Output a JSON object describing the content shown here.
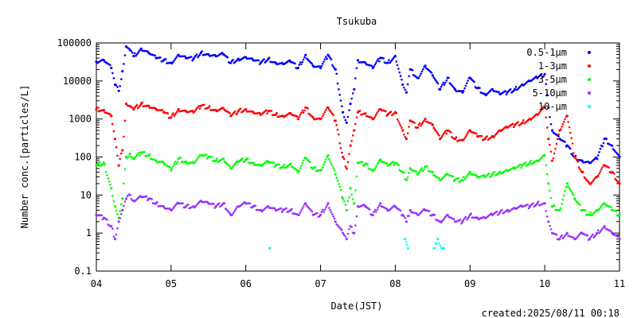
{
  "chart_data": {
    "type": "scatter",
    "title": "Tsukuba",
    "xlabel": "Date(JST)",
    "ylabel": "Number conc.[particles/L]",
    "y_scale": "log",
    "ylim": [
      0.1,
      100000
    ],
    "xlim": [
      4,
      11
    ],
    "x_ticks": [
      {
        "value": 4,
        "label": "04"
      },
      {
        "value": 5,
        "label": "05"
      },
      {
        "value": 6,
        "label": "06"
      },
      {
        "value": 7,
        "label": "07"
      },
      {
        "value": 8,
        "label": "08"
      },
      {
        "value": 9,
        "label": "09"
      },
      {
        "value": 10,
        "label": "10"
      },
      {
        "value": 11,
        "label": "11"
      }
    ],
    "y_ticks": [
      {
        "value": 0.1,
        "label": "0.1"
      },
      {
        "value": 1,
        "label": "1"
      },
      {
        "value": 10,
        "label": "10"
      },
      {
        "value": 100,
        "label": "100"
      },
      {
        "value": 1000,
        "label": "1000"
      },
      {
        "value": 10000,
        "label": "10000"
      },
      {
        "value": 100000,
        "label": "100000"
      }
    ],
    "grid": false,
    "legend_position": "top-right",
    "annotation": "created:2025/08/11 00:18",
    "series": [
      {
        "name": "0.5-1μm",
        "color": "#0000ff",
        "x": [
          4.0,
          4.1,
          4.2,
          4.25,
          4.3,
          4.35,
          4.4,
          4.45,
          4.5,
          4.6,
          4.7,
          4.8,
          4.9,
          5.0,
          5.1,
          5.2,
          5.3,
          5.4,
          5.5,
          5.6,
          5.7,
          5.8,
          5.9,
          6.0,
          6.1,
          6.2,
          6.3,
          6.4,
          6.5,
          6.6,
          6.7,
          6.8,
          6.9,
          7.0,
          7.1,
          7.2,
          7.3,
          7.35,
          7.4,
          7.45,
          7.5,
          7.6,
          7.7,
          7.8,
          7.9,
          8.0,
          8.1,
          8.15,
          8.2,
          8.3,
          8.4,
          8.5,
          8.6,
          8.7,
          8.8,
          8.9,
          9.0,
          9.1,
          9.2,
          9.3,
          9.4,
          9.5,
          9.6,
          9.7,
          9.8,
          9.9,
          10.0,
          10.05,
          10.1,
          10.2,
          10.3,
          10.4,
          10.5,
          10.6,
          10.7,
          10.8,
          10.9,
          11.0
        ],
        "y": [
          32000,
          35000,
          22000,
          8000,
          5500,
          18000,
          80000,
          65000,
          45000,
          70000,
          55000,
          40000,
          35000,
          30000,
          48000,
          40000,
          38000,
          55000,
          50000,
          45000,
          50000,
          30000,
          38000,
          42000,
          35000,
          30000,
          38000,
          30000,
          28000,
          32000,
          22000,
          48000,
          25000,
          22000,
          48000,
          20000,
          1500,
          800,
          2500,
          6000,
          35000,
          30000,
          22000,
          40000,
          30000,
          45000,
          8000,
          5000,
          20000,
          12000,
          25000,
          14000,
          6000,
          12000,
          6000,
          5000,
          12000,
          6500,
          4500,
          6000,
          4500,
          5000,
          6000,
          8000,
          10000,
          12000,
          15000,
          2000,
          500,
          300,
          200,
          100,
          80,
          70,
          90,
          300,
          200,
          100
        ]
      },
      {
        "name": "1-3μm",
        "color": "#ff0000",
        "x": [
          4.0,
          4.1,
          4.2,
          4.25,
          4.3,
          4.35,
          4.4,
          4.45,
          4.5,
          4.6,
          4.7,
          4.8,
          4.9,
          5.0,
          5.1,
          5.2,
          5.3,
          5.4,
          5.5,
          5.6,
          5.7,
          5.8,
          5.9,
          6.0,
          6.1,
          6.2,
          6.3,
          6.4,
          6.5,
          6.6,
          6.7,
          6.8,
          6.9,
          7.0,
          7.1,
          7.2,
          7.3,
          7.35,
          7.4,
          7.45,
          7.5,
          7.6,
          7.7,
          7.8,
          7.9,
          8.0,
          8.1,
          8.15,
          8.2,
          8.3,
          8.4,
          8.5,
          8.6,
          8.7,
          8.8,
          8.9,
          9.0,
          9.1,
          9.2,
          9.3,
          9.4,
          9.5,
          9.6,
          9.7,
          9.8,
          9.9,
          10.0,
          10.05,
          10.1,
          10.2,
          10.3,
          10.4,
          10.5,
          10.6,
          10.7,
          10.8,
          10.9,
          11.0
        ],
        "y": [
          1800,
          1700,
          1200,
          300,
          60,
          150,
          2500,
          2200,
          1800,
          2500,
          2200,
          1800,
          1500,
          1100,
          1800,
          1600,
          1500,
          2200,
          2000,
          1700,
          1900,
          1200,
          1600,
          1800,
          1500,
          1300,
          1600,
          1300,
          1200,
          1400,
          1000,
          2000,
          1100,
          1000,
          2000,
          900,
          100,
          50,
          200,
          500,
          1500,
          1400,
          1000,
          1800,
          1300,
          1500,
          500,
          300,
          900,
          600,
          1000,
          700,
          300,
          500,
          300,
          280,
          500,
          350,
          300,
          350,
          500,
          600,
          700,
          800,
          1000,
          1300,
          2000,
          300,
          80,
          500,
          1200,
          100,
          40,
          20,
          30,
          60,
          40,
          20
        ]
      },
      {
        "name": "3-5μm",
        "color": "#00ff00",
        "x": [
          4.0,
          4.1,
          4.2,
          4.25,
          4.3,
          4.35,
          4.4,
          4.45,
          4.5,
          4.6,
          4.7,
          4.8,
          4.9,
          5.0,
          5.1,
          5.2,
          5.3,
          5.4,
          5.5,
          5.6,
          5.7,
          5.8,
          5.9,
          6.0,
          6.1,
          6.2,
          6.3,
          6.4,
          6.5,
          6.6,
          6.7,
          6.8,
          6.9,
          7.0,
          7.1,
          7.2,
          7.3,
          7.35,
          7.4,
          7.45,
          7.5,
          7.6,
          7.7,
          7.8,
          7.9,
          8.0,
          8.1,
          8.15,
          8.2,
          8.3,
          8.4,
          8.5,
          8.6,
          8.7,
          8.8,
          8.9,
          9.0,
          9.1,
          9.2,
          9.3,
          9.4,
          9.5,
          9.6,
          9.7,
          9.8,
          9.9,
          10.0,
          10.05,
          10.1,
          10.2,
          10.3,
          10.4,
          10.5,
          10.6,
          10.7,
          10.8,
          10.9,
          11.0
        ],
        "y": [
          60,
          70,
          15,
          5,
          2.5,
          8,
          100,
          120,
          90,
          130,
          110,
          80,
          70,
          45,
          90,
          75,
          70,
          110,
          100,
          80,
          90,
          50,
          75,
          85,
          70,
          60,
          75,
          60,
          55,
          65,
          40,
          95,
          50,
          45,
          110,
          35,
          8,
          4,
          15,
          6,
          70,
          65,
          45,
          85,
          60,
          70,
          40,
          25,
          50,
          35,
          55,
          40,
          25,
          35,
          25,
          25,
          40,
          30,
          30,
          35,
          40,
          45,
          50,
          60,
          70,
          80,
          110,
          20,
          5,
          4,
          20,
          8,
          4,
          3,
          4,
          6,
          4,
          3
        ]
      },
      {
        "name": "5-10μm",
        "color": "#9933ff",
        "x": [
          4.0,
          4.1,
          4.2,
          4.25,
          4.3,
          4.35,
          4.4,
          4.45,
          4.5,
          4.6,
          4.7,
          4.8,
          4.9,
          5.0,
          5.1,
          5.2,
          5.3,
          5.4,
          5.5,
          5.6,
          5.7,
          5.8,
          5.9,
          6.0,
          6.1,
          6.2,
          6.3,
          6.4,
          6.5,
          6.6,
          6.7,
          6.8,
          6.9,
          7.0,
          7.1,
          7.2,
          7.3,
          7.35,
          7.4,
          7.45,
          7.5,
          7.6,
          7.7,
          7.8,
          7.9,
          8.0,
          8.1,
          8.15,
          8.2,
          8.3,
          8.4,
          8.5,
          8.6,
          8.7,
          8.8,
          8.9,
          9.0,
          9.1,
          9.2,
          9.3,
          9.4,
          9.5,
          9.6,
          9.7,
          9.8,
          9.9,
          10.0,
          10.05,
          10.1,
          10.2,
          10.3,
          10.4,
          10.5,
          10.6,
          10.7,
          10.8,
          10.9,
          11.0
        ],
        "y": [
          3,
          2.5,
          1.5,
          0.7,
          2,
          4,
          8,
          10,
          7,
          9,
          8,
          6,
          5,
          4,
          6,
          5,
          5,
          7,
          6,
          5,
          6,
          3,
          5,
          6,
          5,
          4,
          5,
          4,
          4,
          4,
          3,
          6,
          3,
          3,
          6,
          2,
          1,
          0.7,
          1.5,
          1,
          5,
          5,
          3,
          6,
          4,
          5,
          3,
          2,
          4,
          3,
          4,
          3,
          2,
          3,
          2,
          2,
          3,
          2.5,
          2.5,
          3,
          3.5,
          4,
          4.5,
          5,
          5,
          6,
          6,
          2,
          1,
          0.7,
          1,
          0.7,
          1,
          0.7,
          1,
          1.5,
          1,
          0.7
        ]
      },
      {
        "name": "10-μm",
        "color": "#00ffff",
        "x": [
          6.32,
          8.13,
          8.17,
          8.52,
          8.57,
          8.62,
          8.65
        ],
        "y": [
          0.4,
          0.7,
          0.4,
          0.4,
          0.7,
          0.4,
          0.4
        ]
      }
    ]
  }
}
